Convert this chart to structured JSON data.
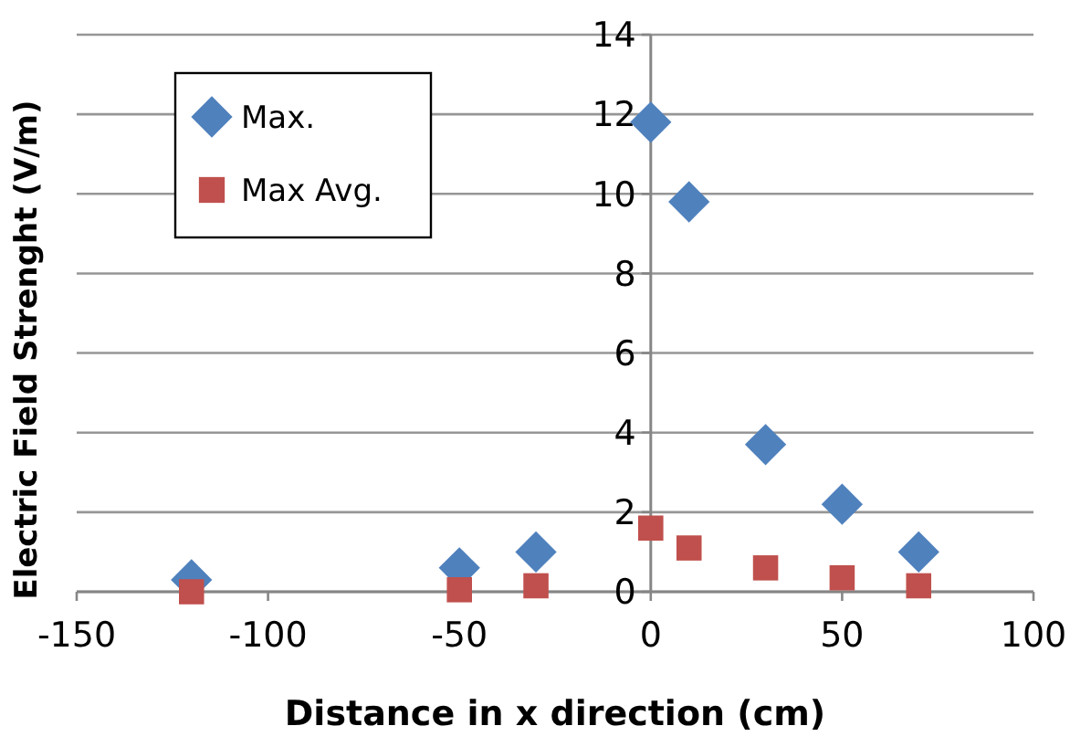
{
  "chart_data": {
    "type": "scatter",
    "xlabel": "Distance in x direction  (cm)",
    "ylabel": "Electric Field Strenght (V/m)",
    "x": [
      -120,
      -50,
      -30,
      0,
      10,
      30,
      50,
      70
    ],
    "series": [
      {
        "name": "Max.",
        "color": "#4f81bd",
        "marker": "diamond",
        "values": [
          0.3,
          0.6,
          1.0,
          11.8,
          9.8,
          3.7,
          2.2,
          1.0
        ]
      },
      {
        "name": "Max Avg.",
        "color": "#c0504d",
        "marker": "square",
        "values": [
          0.0,
          0.05,
          0.15,
          1.6,
          1.1,
          0.6,
          0.35,
          0.15
        ]
      }
    ],
    "xlim": [
      -150,
      100
    ],
    "xticks": [
      -150,
      -100,
      -50,
      0,
      50,
      100
    ],
    "ylim": [
      0,
      14
    ],
    "yticks": [
      0,
      2,
      4,
      6,
      8,
      10,
      12,
      14
    ],
    "grid": "y",
    "legend": "top left"
  }
}
